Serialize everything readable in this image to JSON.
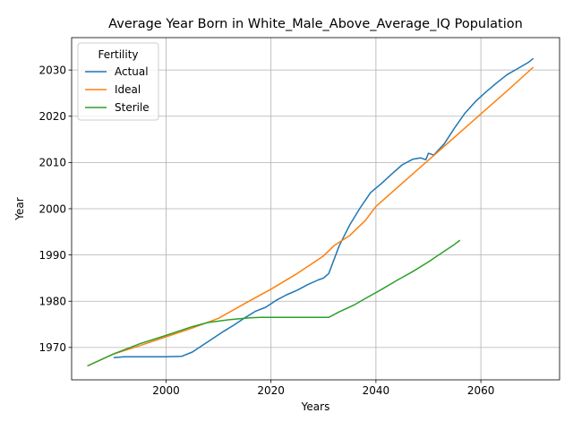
{
  "chart_data": {
    "type": "line",
    "title": "Average Year Born in White_Male_Above_Average_IQ Population",
    "xlabel": "Years",
    "ylabel": "Year",
    "xlim": [
      1982,
      2075
    ],
    "ylim": [
      1963,
      2037
    ],
    "xticks": [
      2000,
      2020,
      2040,
      2060
    ],
    "yticks": [
      1970,
      1980,
      1990,
      2000,
      2010,
      2020,
      2030
    ],
    "grid": true,
    "legend": {
      "title": "Fertility",
      "placement": "top-left"
    },
    "series": [
      {
        "name": "Actual",
        "color": "#1f77b4",
        "x": [
          1990,
          1992,
          1996,
          2000,
          2003,
          2005,
          2007,
          2009,
          2011,
          2013,
          2015,
          2017,
          2019,
          2021,
          2023,
          2025,
          2027,
          2029,
          2030,
          2031,
          2033,
          2035,
          2037,
          2039,
          2041,
          2043,
          2045,
          2047,
          2048.5,
          2049.5,
          2050,
          2051,
          2053,
          2055,
          2057,
          2059,
          2061,
          2063,
          2065,
          2067,
          2069,
          2070
        ],
        "y": [
          1967.8,
          1968.0,
          1968.0,
          1968.0,
          1968.1,
          1969.0,
          1970.5,
          1972.0,
          1973.5,
          1974.9,
          1976.4,
          1977.8,
          1978.7,
          1980.2,
          1981.4,
          1982.4,
          1983.6,
          1984.6,
          1985.0,
          1986.0,
          1992.0,
          1996.5,
          2000.2,
          2003.5,
          2005.4,
          2007.5,
          2009.5,
          2010.7,
          2011.0,
          2010.6,
          2012.0,
          2011.6,
          2014.0,
          2017.5,
          2020.7,
          2023.2,
          2025.3,
          2027.2,
          2029.0,
          2030.3,
          2031.6,
          2032.5
        ]
      },
      {
        "name": "Ideal",
        "color": "#ff7f0e",
        "x": [
          1985,
          1990,
          1995,
          2000,
          2005,
          2010,
          2015,
          2020,
          2025,
          2030,
          2032,
          2035,
          2038,
          2040,
          2045,
          2050,
          2055,
          2060,
          2065,
          2070
        ],
        "y": [
          1966.0,
          1968.6,
          1970.4,
          1972.3,
          1974.2,
          1976.3,
          1979.5,
          1982.6,
          1986.0,
          1989.8,
          1992.0,
          1994.2,
          1997.5,
          2000.5,
          2005.5,
          2010.5,
          2015.5,
          2020.5,
          2025.5,
          2030.6
        ]
      },
      {
        "name": "Sterile",
        "color": "#2ca02c",
        "x": [
          1985,
          1990,
          1995,
          2000,
          2005,
          2008,
          2012,
          2016,
          2018,
          2020,
          2025,
          2028,
          2031,
          2033,
          2036,
          2038,
          2041,
          2044,
          2047,
          2050,
          2053,
          2055,
          2056
        ],
        "y": [
          1966.0,
          1968.6,
          1970.8,
          1972.6,
          1974.5,
          1975.4,
          1976.0,
          1976.4,
          1976.5,
          1976.5,
          1976.5,
          1976.5,
          1976.5,
          1977.7,
          1979.3,
          1980.6,
          1982.5,
          1984.5,
          1986.4,
          1988.5,
          1990.8,
          1992.3,
          1993.2
        ]
      }
    ]
  }
}
